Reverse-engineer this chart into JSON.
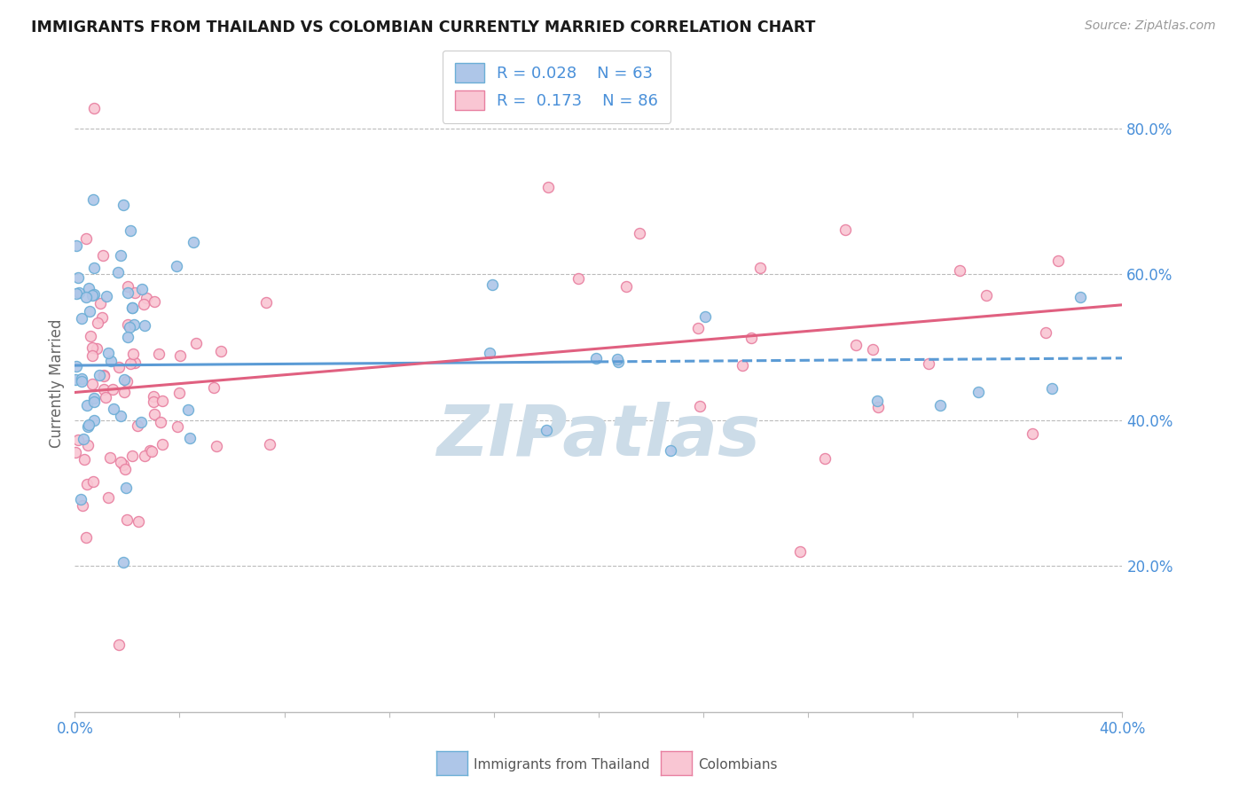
{
  "title": "IMMIGRANTS FROM THAILAND VS COLOMBIAN CURRENTLY MARRIED CORRELATION CHART",
  "source": "Source: ZipAtlas.com",
  "ylabel": "Currently Married",
  "xmin": 0.0,
  "xmax": 0.4,
  "ymin": 0.0,
  "ymax": 0.9,
  "yticks": [
    0.2,
    0.4,
    0.6,
    0.8
  ],
  "ytick_labels": [
    "20.0%",
    "40.0%",
    "60.0%",
    "80.0%"
  ],
  "xtick_labels": [
    "0.0%",
    "40.0%"
  ],
  "legend_R_thailand": "0.028",
  "legend_N_thailand": "63",
  "legend_R_colombian": "0.173",
  "legend_N_colombian": "86",
  "thailand_face_color": "#aec6e8",
  "thailand_edge_color": "#6baed6",
  "colombian_face_color": "#f9c6d3",
  "colombian_edge_color": "#e87fa0",
  "thailand_line_color": "#5b9bd5",
  "colombian_line_color": "#e06080",
  "background_color": "#ffffff",
  "grid_color": "#bbbbbb",
  "watermark_text": "ZIPatlas",
  "watermark_color": "#ccdce8",
  "title_color": "#1a1a1a",
  "axis_tick_color": "#4a90d9",
  "legend_text_color": "#4a90d9",
  "bottom_legend_text_color": "#555555",
  "thai_line_intercept": 0.475,
  "thai_line_slope": 0.025,
  "col_line_intercept": 0.438,
  "col_line_slope": 0.3
}
